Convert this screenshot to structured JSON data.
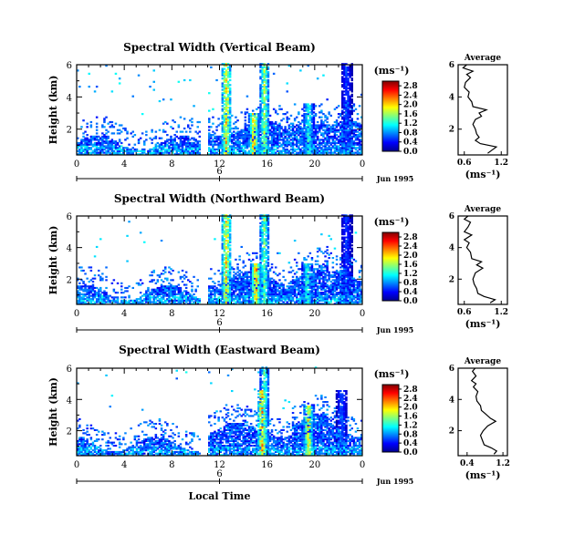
{
  "chart_data": [
    {
      "type": "heatmap",
      "title": "Spectral Width (Vertical Beam)",
      "ylabel": "Height (km)",
      "xlabel": "",
      "x_ticks": [
        "0",
        "4",
        "8",
        "12",
        "16",
        "20",
        "0"
      ],
      "y_ticks": [
        "2",
        "4",
        "6"
      ],
      "xlim": [
        0,
        24
      ],
      "ylim": [
        0.4,
        6
      ],
      "day_label": "6",
      "date_label": "Jun 1995",
      "colorbar": {
        "unit": "(ms⁻¹)",
        "ticks": [
          "0.0",
          "0.4",
          "0.8",
          "1.2",
          "1.6",
          "2.0",
          "2.4",
          "2.8"
        ],
        "range": [
          0,
          3.0
        ]
      },
      "events": [
        {
          "t": 12.5,
          "h": 6.0,
          "v": 2.4
        },
        {
          "t": 15.7,
          "h": 6.0,
          "v": 2.0
        },
        {
          "t": 14.8,
          "h": 3.0,
          "v": 2.6
        },
        {
          "t": 19.4,
          "h": 3.6,
          "v": 1.6
        },
        {
          "t": 22.6,
          "h": 6.0,
          "v": 0.7
        }
      ],
      "average": {
        "title": "Average",
        "xlabel": "(ms⁻¹)",
        "x_ticks": [
          "0.6",
          "1.2"
        ],
        "y_ticks": [
          "2",
          "4",
          "6"
        ],
        "xlim": [
          0.5,
          1.3
        ],
        "ylim": [
          0.4,
          6
        ],
        "profile": [
          [
            0.98,
            0.5
          ],
          [
            1.05,
            0.7
          ],
          [
            1.12,
            0.9
          ],
          [
            0.86,
            1.1
          ],
          [
            0.78,
            1.3
          ],
          [
            0.84,
            1.5
          ],
          [
            0.8,
            1.7
          ],
          [
            0.78,
            2.0
          ],
          [
            0.74,
            2.3
          ],
          [
            0.78,
            2.6
          ],
          [
            0.88,
            2.8
          ],
          [
            0.84,
            3.0
          ],
          [
            0.96,
            3.2
          ],
          [
            0.74,
            3.4
          ],
          [
            0.72,
            3.7
          ],
          [
            0.66,
            4.0
          ],
          [
            0.68,
            4.3
          ],
          [
            0.6,
            4.6
          ],
          [
            0.62,
            4.9
          ],
          [
            0.7,
            5.2
          ],
          [
            0.64,
            5.4
          ],
          [
            0.74,
            5.6
          ],
          [
            0.58,
            5.8
          ],
          [
            0.64,
            6.0
          ]
        ]
      }
    },
    {
      "type": "heatmap",
      "title": "Spectral Width (Northward Beam)",
      "ylabel": "Height (km)",
      "xlabel": "",
      "x_ticks": [
        "0",
        "4",
        "8",
        "12",
        "16",
        "20",
        "0"
      ],
      "y_ticks": [
        "2",
        "4",
        "6"
      ],
      "xlim": [
        0,
        24
      ],
      "ylim": [
        0.4,
        6
      ],
      "day_label": "6",
      "date_label": "Jun 1995",
      "colorbar": {
        "unit": "(ms⁻¹)",
        "ticks": [
          "0.0",
          "0.4",
          "0.8",
          "1.2",
          "1.6",
          "2.0",
          "2.4",
          "2.8"
        ],
        "range": [
          0,
          3.0
        ]
      },
      "events": [
        {
          "t": 12.5,
          "h": 6.0,
          "v": 2.4
        },
        {
          "t": 15.7,
          "h": 6.0,
          "v": 1.8
        },
        {
          "t": 15.0,
          "h": 3.0,
          "v": 2.6
        },
        {
          "t": 19.3,
          "h": 3.0,
          "v": 1.6
        },
        {
          "t": 22.6,
          "h": 6.0,
          "v": 0.7
        }
      ],
      "average": {
        "title": "Average",
        "xlabel": "(ms⁻¹)",
        "x_ticks": [
          "0.6",
          "1.2"
        ],
        "y_ticks": [
          "2",
          "4",
          "6"
        ],
        "xlim": [
          0.5,
          1.3
        ],
        "ylim": [
          0.4,
          6
        ],
        "profile": [
          [
            1.02,
            0.5
          ],
          [
            1.1,
            0.7
          ],
          [
            0.92,
            0.9
          ],
          [
            0.82,
            1.1
          ],
          [
            0.8,
            1.4
          ],
          [
            0.76,
            1.7
          ],
          [
            0.74,
            2.0
          ],
          [
            0.78,
            2.4
          ],
          [
            0.9,
            2.7
          ],
          [
            0.8,
            2.9
          ],
          [
            0.88,
            3.1
          ],
          [
            0.72,
            3.3
          ],
          [
            0.7,
            3.7
          ],
          [
            0.64,
            4.0
          ],
          [
            0.68,
            4.3
          ],
          [
            0.6,
            4.5
          ],
          [
            0.72,
            4.8
          ],
          [
            0.6,
            5.0
          ],
          [
            0.66,
            5.3
          ],
          [
            0.7,
            5.6
          ],
          [
            0.6,
            5.8
          ],
          [
            0.66,
            6.0
          ]
        ]
      }
    },
    {
      "type": "heatmap",
      "title": "Spectral Width (Eastward Beam)",
      "ylabel": "Height (km)",
      "xlabel": "Local Time",
      "x_ticks": [
        "0",
        "4",
        "8",
        "12",
        "16",
        "20",
        "0"
      ],
      "y_ticks": [
        "2",
        "4",
        "6"
      ],
      "xlim": [
        0,
        24
      ],
      "ylim": [
        0.4,
        6
      ],
      "day_label": "6",
      "date_label": "Jun 1995",
      "colorbar": {
        "unit": "(ms⁻¹)",
        "ticks": [
          "0.0",
          "0.4",
          "0.8",
          "1.2",
          "1.6",
          "2.0",
          "2.4",
          "2.8"
        ],
        "range": [
          0,
          3.0
        ]
      },
      "events": [
        {
          "t": 15.5,
          "h": 4.5,
          "v": 2.6
        },
        {
          "t": 15.7,
          "h": 6.0,
          "v": 1.6
        },
        {
          "t": 19.4,
          "h": 3.6,
          "v": 2.4
        },
        {
          "t": 22.2,
          "h": 4.5,
          "v": 0.8
        }
      ],
      "average": {
        "title": "Average",
        "xlabel": "(ms⁻¹)",
        "x_ticks": [
          "0.4",
          "1.2"
        ],
        "y_ticks": [
          "2",
          "4",
          "6"
        ],
        "xlim": [
          0.2,
          1.3
        ],
        "ylim": [
          0.4,
          6
        ],
        "profile": [
          [
            1.0,
            0.5
          ],
          [
            1.06,
            0.7
          ],
          [
            0.94,
            0.9
          ],
          [
            0.78,
            1.1
          ],
          [
            0.74,
            1.4
          ],
          [
            0.7,
            1.7
          ],
          [
            0.76,
            2.0
          ],
          [
            0.86,
            2.3
          ],
          [
            1.04,
            2.6
          ],
          [
            0.92,
            2.8
          ],
          [
            0.8,
            3.1
          ],
          [
            0.72,
            3.3
          ],
          [
            0.7,
            3.6
          ],
          [
            0.62,
            3.9
          ],
          [
            0.6,
            4.2
          ],
          [
            0.64,
            4.5
          ],
          [
            0.54,
            4.8
          ],
          [
            0.6,
            5.0
          ],
          [
            0.5,
            5.2
          ],
          [
            0.6,
            5.5
          ],
          [
            0.52,
            5.8
          ],
          [
            0.58,
            6.0
          ]
        ]
      }
    }
  ]
}
